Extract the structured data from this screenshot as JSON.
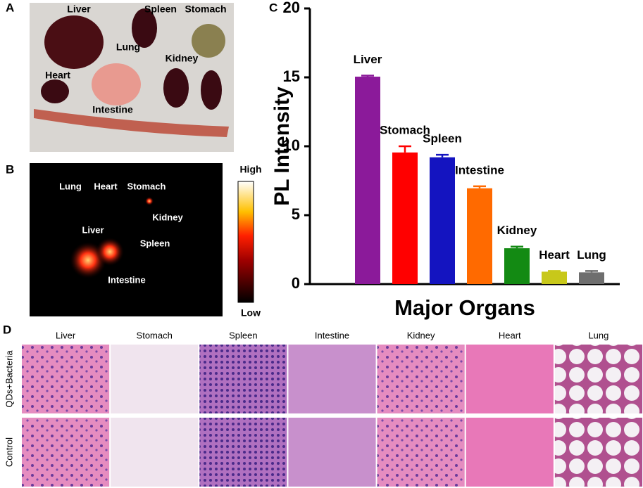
{
  "panels": {
    "a": {
      "label": "A",
      "organs": [
        "Liver",
        "Spleen",
        "Stomach",
        "Lung",
        "Kidney",
        "Heart",
        "Intestine"
      ]
    },
    "b": {
      "label": "B",
      "organs": [
        "Lung",
        "Heart",
        "Stomach",
        "Kidney",
        "Liver",
        "Spleen",
        "Intestine"
      ],
      "colorbar_high": "High",
      "colorbar_low": "Low"
    },
    "d": {
      "label": "D",
      "columns": [
        "Liver",
        "Stomach",
        "Spleen",
        "Intestine",
        "Kidney",
        "Heart",
        "Lung"
      ],
      "rows": [
        "QDs+Bacteria",
        "Control"
      ]
    }
  },
  "chart_data": {
    "type": "bar",
    "panel_label": "C",
    "ylabel": "PL Intensity",
    "xlabel": "Major Organs",
    "categories": [
      "Liver",
      "Stomach",
      "Spleen",
      "Intestine",
      "Kidney",
      "Heart",
      "Lung"
    ],
    "values": [
      15.05,
      9.55,
      9.2,
      6.95,
      2.6,
      0.9,
      0.85
    ],
    "errors": [
      0.08,
      0.45,
      0.18,
      0.15,
      0.12,
      0.05,
      0.1
    ],
    "colors": [
      "#8b1a9a",
      "#ff0000",
      "#1414c0",
      "#ff6a00",
      "#138a13",
      "#c8c81a",
      "#6e6e6e"
    ],
    "ylim": [
      0,
      20
    ],
    "yticks": [
      0,
      5,
      10,
      15,
      20
    ]
  }
}
